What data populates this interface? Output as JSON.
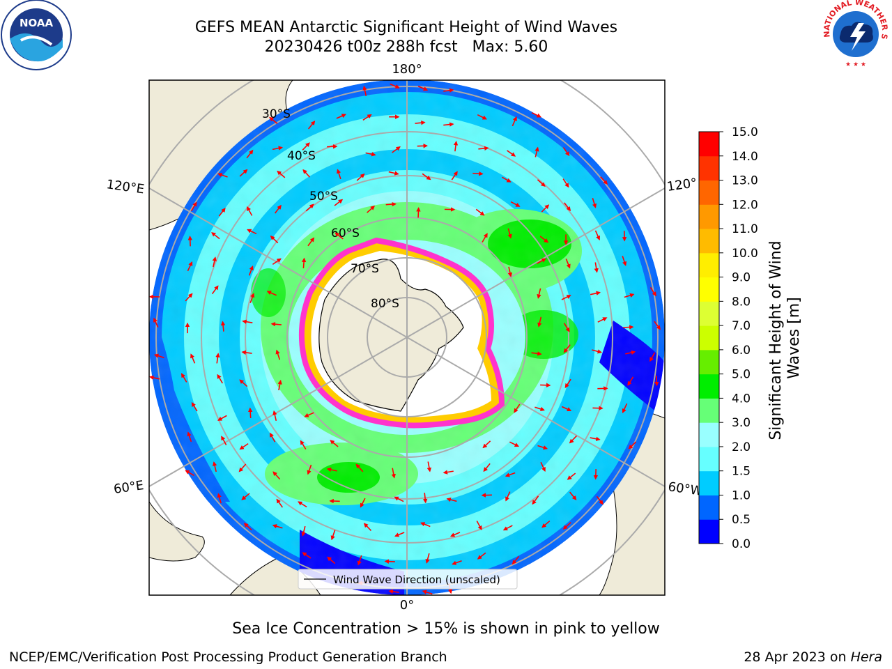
{
  "title": {
    "line1": "GEFS MEAN Antarctic Significant Height of Wind Waves",
    "line2": "20230426 t00z 288h fcst   Max: 5.60"
  },
  "map": {
    "projection": "south-polar-stereographic",
    "longitude_labels": {
      "top": "180°",
      "bottom": "0°",
      "upper_left": "120°E",
      "upper_right": "120°",
      "lower_left": "60°E",
      "lower_right": "60°W"
    },
    "latitude_labels": [
      "30°S",
      "40°S",
      "50°S",
      "60°S",
      "70°S",
      "80°S"
    ],
    "legend_label": "Wind Wave Direction (unscaled)",
    "arrow_color": "#ff0000",
    "land_color": "#efebd9",
    "ice_shelf_color": "#ffffff",
    "sea_ice_colors": [
      "#ff33cc",
      "#ffcc00"
    ]
  },
  "colorbar": {
    "label": "Significant Height of Wind\nWaves [m]",
    "ticks": [
      "0.0",
      "0.5",
      "1.0",
      "1.5",
      "2.0",
      "3.0",
      "4.0",
      "5.0",
      "6.0",
      "7.0",
      "8.0",
      "9.0",
      "10.0",
      "11.0",
      "12.0",
      "13.0",
      "14.0",
      "15.0"
    ],
    "colors": [
      "#0000ff",
      "#0066ff",
      "#00ccff",
      "#66ffff",
      "#99ffff",
      "#66ff77",
      "#00ee00",
      "#66ee00",
      "#ccff00",
      "#ddff33",
      "#ffff00",
      "#ffee00",
      "#ffbb00",
      "#ff9900",
      "#ff6600",
      "#ff3300",
      "#ff0000"
    ]
  },
  "note": "Sea Ice Concentration > 15% is shown in pink to yellow",
  "footer": {
    "left": "NCEP/EMC/Verification Post Processing Product Generation Branch",
    "right_prefix": "28 Apr 2023 on ",
    "right_machine": "Hera"
  },
  "logos": {
    "left": "NOAA",
    "right": "NATIONAL WEATHER SERVICE"
  }
}
